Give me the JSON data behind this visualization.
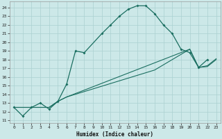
{
  "xlabel": "Humidex (Indice chaleur)",
  "bg_color": "#cce8e8",
  "grid_color": "#aad0d0",
  "line_color": "#1a6e60",
  "xlim": [
    -0.5,
    23.5
  ],
  "ylim": [
    10.7,
    24.7
  ],
  "xticks": [
    0,
    1,
    2,
    3,
    4,
    5,
    6,
    7,
    8,
    9,
    10,
    11,
    12,
    13,
    14,
    15,
    16,
    17,
    18,
    19,
    20,
    21,
    22,
    23
  ],
  "yticks": [
    11,
    12,
    13,
    14,
    15,
    16,
    17,
    18,
    19,
    20,
    21,
    22,
    23,
    24
  ],
  "curve_main_x": [
    0,
    1,
    2,
    3,
    4,
    5,
    6,
    7,
    8,
    10,
    11,
    12,
    13,
    14,
    15,
    16,
    17,
    18,
    19,
    20,
    21,
    22
  ],
  "curve_main_y": [
    12.5,
    11.5,
    12.5,
    13.0,
    12.3,
    13.2,
    15.2,
    19.0,
    18.8,
    21.0,
    22.0,
    23.0,
    23.8,
    24.2,
    24.2,
    23.3,
    22.0,
    21.0,
    19.2,
    18.8,
    17.1,
    18.0
  ],
  "curve2_x": [
    0,
    4,
    5,
    6,
    20,
    21,
    22,
    23
  ],
  "curve2_y": [
    12.5,
    12.5,
    13.2,
    13.7,
    19.2,
    17.1,
    17.2,
    18.0
  ],
  "curve3_x": [
    0,
    4,
    5,
    6,
    16,
    20,
    21,
    22,
    23
  ],
  "curve3_y": [
    12.5,
    12.5,
    13.2,
    13.7,
    16.8,
    19.2,
    17.1,
    17.3,
    18.1
  ]
}
